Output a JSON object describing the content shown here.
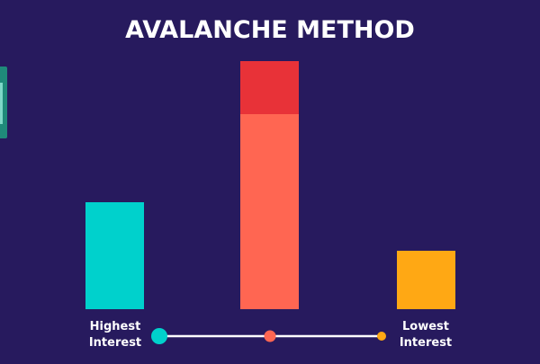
{
  "title": "AVALANCHE METHOD",
  "scale": {
    "low_label_line1": "Highest",
    "low_label_line2": "Interest",
    "high_label_line1": "Lowest",
    "high_label_line2": "Interest"
  },
  "colors": {
    "background": "#271a5e",
    "bar_1": "#00d1cc",
    "bar_2_base": "#ff6652",
    "bar_2_top": "#e83238",
    "bar_3": "#ffa814",
    "line": "#ffffff",
    "dot_1": "#00d1cc",
    "dot_2": "#ff6652",
    "dot_3": "#ffa814"
  },
  "chart_data": {
    "type": "bar",
    "categories": [
      "",
      "",
      ""
    ],
    "series": [
      {
        "values": [
          119,
          217,
          65
        ]
      },
      {
        "values": [
          0,
          59,
          0
        ]
      }
    ],
    "ylim": [
      0,
      280
    ],
    "grid": false,
    "legend": "none"
  }
}
